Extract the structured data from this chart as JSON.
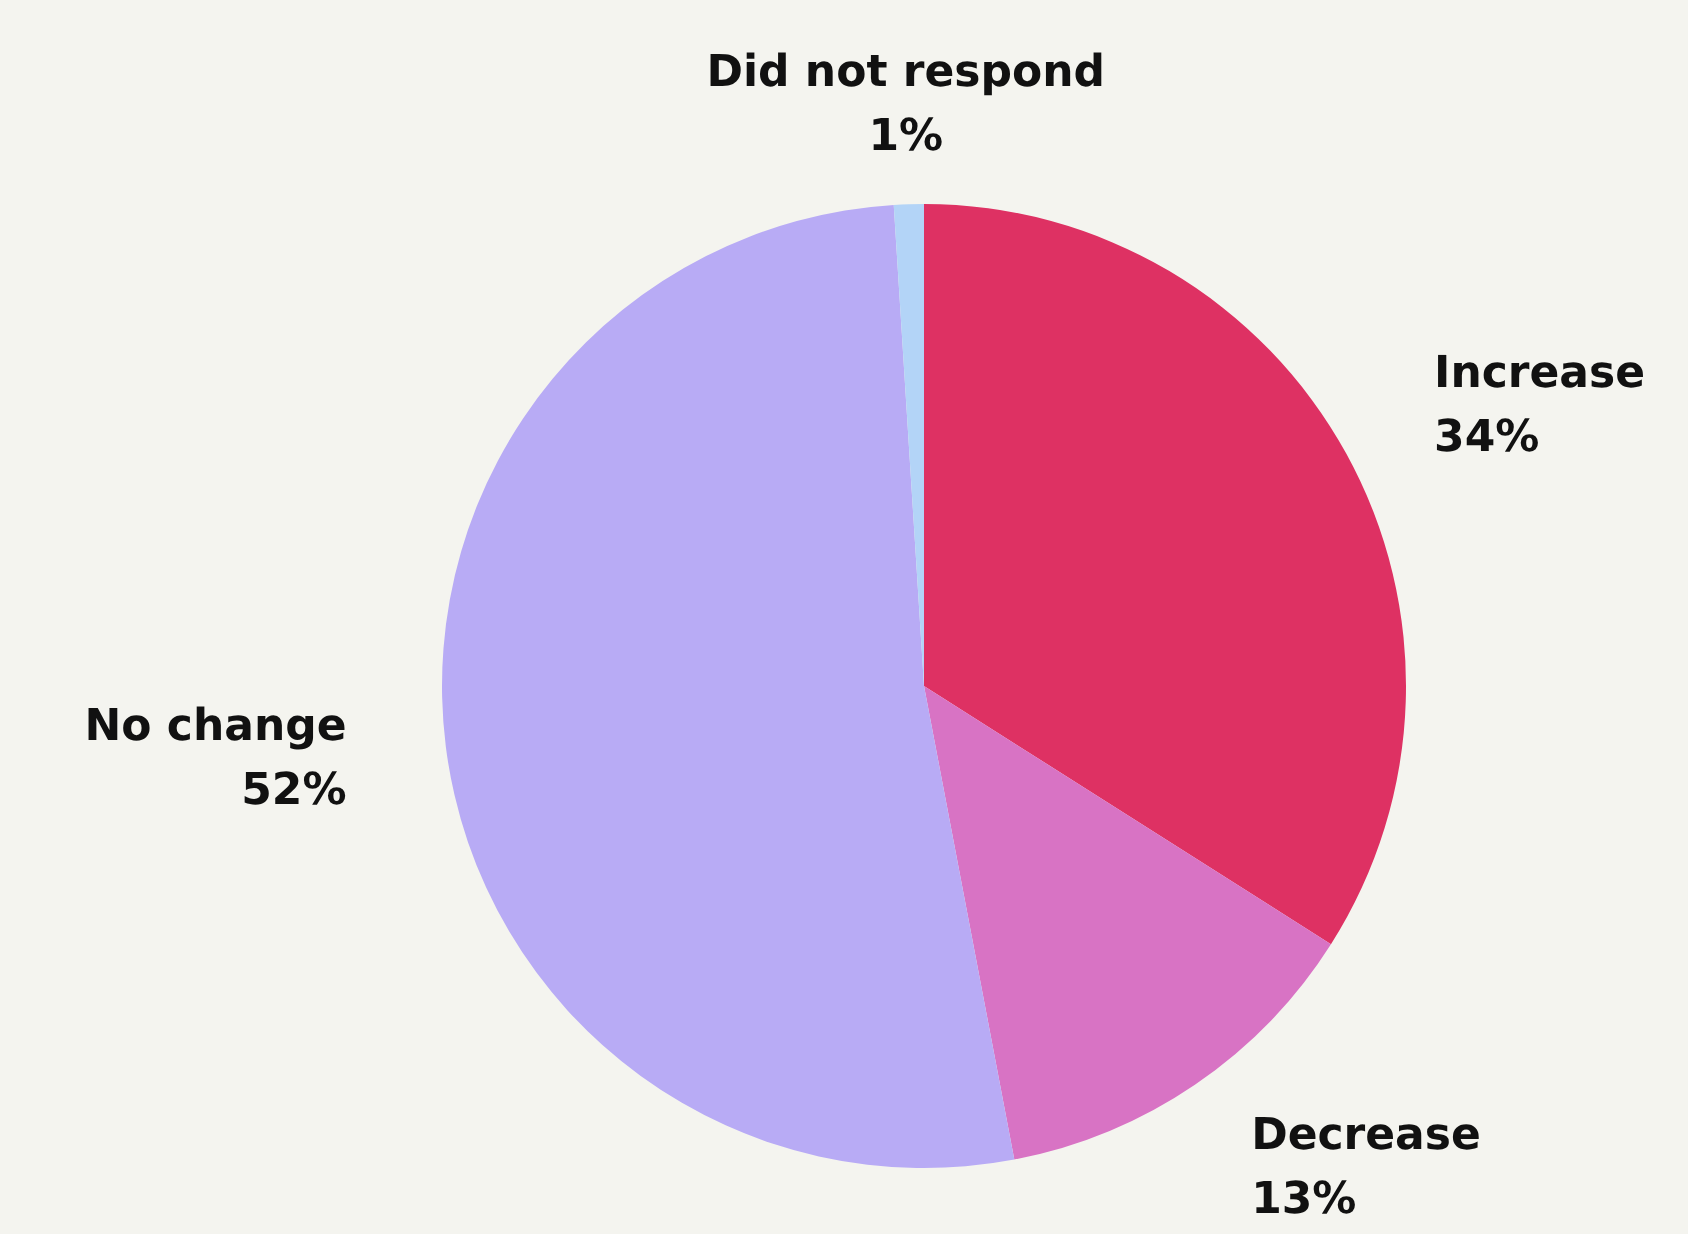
{
  "chart_data": {
    "type": "pie",
    "categories": [
      "Increase",
      "Decrease",
      "No change",
      "Did not respond"
    ],
    "values": [
      34,
      13,
      52,
      1
    ],
    "colors": [
      "#de3163",
      "#d873c4",
      "#b8abf5",
      "#b3d4f7"
    ],
    "value_labels": [
      "34%",
      "13%",
      "52%",
      "1%"
    ],
    "legend": false
  }
}
